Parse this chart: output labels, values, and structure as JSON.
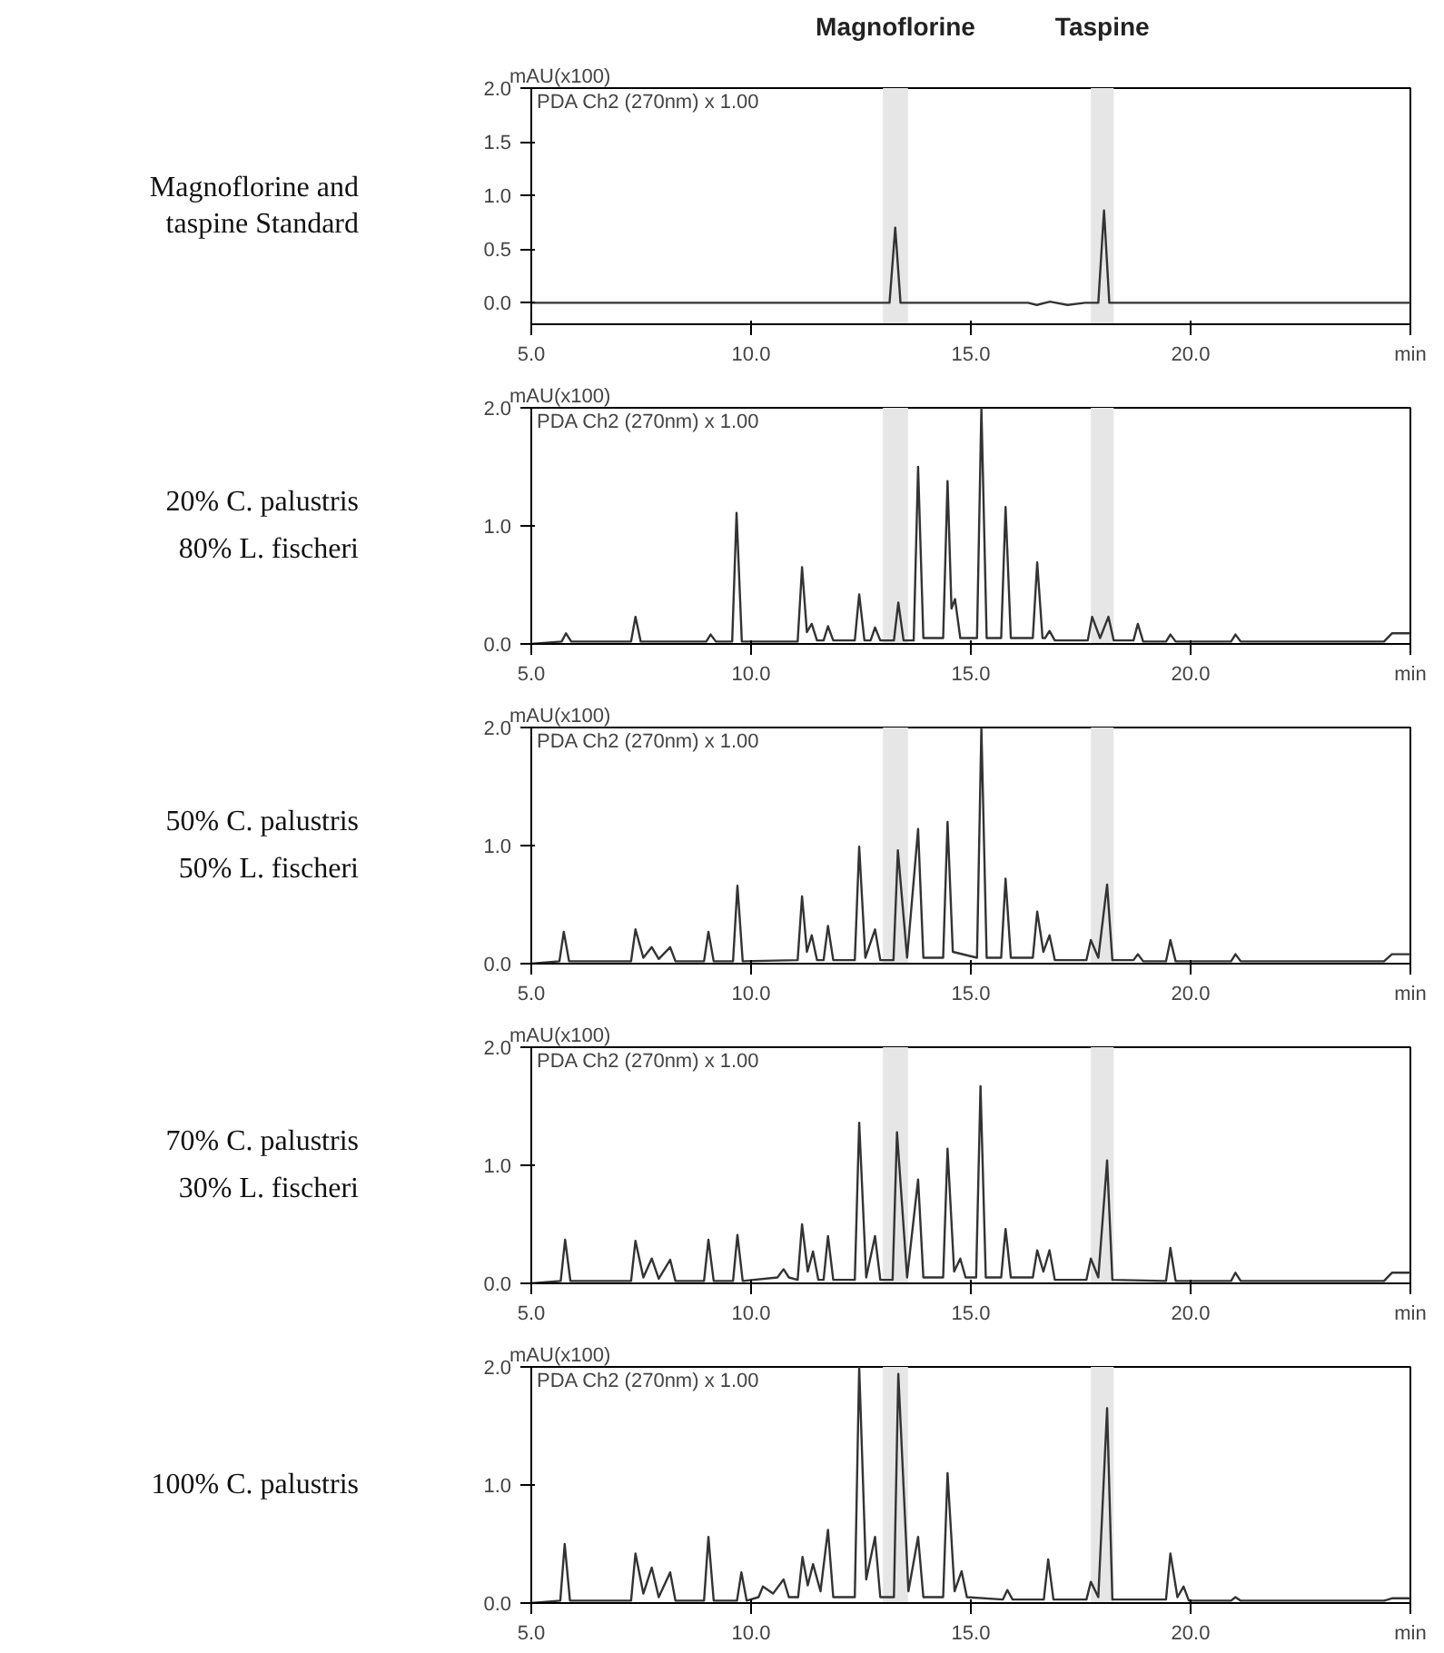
{
  "chart_data": [
    {
      "type": "line",
      "title": "Magnoflorine and taspine Standard",
      "ylabel": "mAU(x100)",
      "annotations": [
        "PDA Ch2 (270nm) x 1.00"
      ],
      "color": "#333333",
      "x": [
        5,
        13.15,
        13.28,
        13.4,
        16.3,
        16.5,
        16.8,
        17.2,
        17.6,
        17.9,
        18.03,
        18.15,
        25
      ],
      "values": [
        0,
        0,
        0.7,
        0,
        0,
        -0.02,
        0.01,
        -0.02,
        0,
        0,
        0.86,
        0,
        0
      ],
      "xlim": [
        5,
        25
      ],
      "ylim": [
        -0.2,
        2.0
      ],
      "xticks": [
        {
          "value": 5,
          "label": "5.0"
        },
        {
          "value": 10,
          "label": "10.0"
        },
        {
          "value": 15,
          "label": "15.0"
        },
        {
          "value": 20,
          "label": "20.0"
        },
        {
          "value": 25,
          "label": "min"
        }
      ],
      "yticks": [
        {
          "value": 0,
          "label": "0.0"
        },
        {
          "value": 0.5,
          "label": "0.5"
        },
        {
          "value": 1,
          "label": "1.0"
        },
        {
          "value": 1.5,
          "label": "1.5"
        },
        {
          "value": 2,
          "label": "2.0"
        }
      ],
      "bands": [
        {
          "axis": "x",
          "from": 13.0,
          "to": 13.57,
          "color": "#e6e6e6",
          "label": "Magnoflorine"
        },
        {
          "axis": "x",
          "from": 17.73,
          "to": 18.25,
          "color": "#e6e6e6",
          "label": "Taspine"
        }
      ]
    },
    {
      "type": "line",
      "title": "20% C. palustris",
      "subtitle": "80% L. fischeri",
      "ylabel": "mAU(x100)",
      "annotations": [
        "PDA Ch2 (270nm) x 1.00"
      ],
      "color": "#333333",
      "x": [
        5,
        5.69,
        5.79,
        5.91,
        7.27,
        7.37,
        7.49,
        8.98,
        9.08,
        9.2,
        9.57,
        9.67,
        9.79,
        11.06,
        11.16,
        11.27,
        11.38,
        11.5,
        11.65,
        11.75,
        11.87,
        12.36,
        12.46,
        12.58,
        12.72,
        12.82,
        12.94,
        13.25,
        13.35,
        13.47,
        13.7,
        13.8,
        13.92,
        14.37,
        14.47,
        14.56,
        14.64,
        14.76,
        15.14,
        15.24,
        15.36,
        15.69,
        15.79,
        15.91,
        16.41,
        16.51,
        16.63,
        16.69,
        16.79,
        16.91,
        17.66,
        17.76,
        17.94,
        18.13,
        18.25,
        18.7,
        18.8,
        18.92,
        19.44,
        19.54,
        19.66,
        20.92,
        21.02,
        21.14,
        24.4,
        24.58,
        25
      ],
      "values": [
        0,
        0.02,
        0.09,
        0.02,
        0.02,
        0.23,
        0.02,
        0.02,
        0.08,
        0.02,
        0.02,
        1.11,
        0.02,
        0.02,
        0.65,
        0.1,
        0.17,
        0.03,
        0.03,
        0.15,
        0.03,
        0.03,
        0.42,
        0.03,
        0.03,
        0.14,
        0.03,
        0.03,
        0.35,
        0.03,
        0.03,
        1.5,
        0.05,
        0.05,
        1.38,
        0.3,
        0.38,
        0.05,
        0.05,
        2.0,
        0.05,
        0.05,
        1.16,
        0.05,
        0.05,
        0.69,
        0.05,
        0.05,
        0.11,
        0.03,
        0.03,
        0.23,
        0.05,
        0.23,
        0.03,
        0.03,
        0.17,
        0.02,
        0.02,
        0.08,
        0.02,
        0.02,
        0.08,
        0.02,
        0.02,
        0.09,
        0.09
      ],
      "xlim": [
        5,
        25
      ],
      "ylim": [
        0,
        2.0
      ],
      "xticks": [
        {
          "value": 5,
          "label": "5.0"
        },
        {
          "value": 10,
          "label": "10.0"
        },
        {
          "value": 15,
          "label": "15.0"
        },
        {
          "value": 20,
          "label": "20.0"
        },
        {
          "value": 25,
          "label": "min"
        }
      ],
      "yticks": [
        {
          "value": 0,
          "label": "0.0"
        },
        {
          "value": 1,
          "label": "1.0"
        },
        {
          "value": 2,
          "label": "2.0"
        }
      ],
      "bands": [
        {
          "axis": "x",
          "from": 13.0,
          "to": 13.57,
          "color": "#e6e6e6"
        },
        {
          "axis": "x",
          "from": 17.73,
          "to": 18.25,
          "color": "#e6e6e6"
        }
      ]
    },
    {
      "type": "line",
      "title": "50% C. palustris",
      "subtitle": "50% L. fischeri",
      "ylabel": "mAU(x100)",
      "annotations": [
        "PDA Ch2 (270nm) x 1.00"
      ],
      "color": "#333333",
      "x": [
        5,
        5.64,
        5.74,
        5.86,
        7.27,
        7.37,
        7.55,
        7.74,
        7.9,
        8.16,
        8.28,
        8.93,
        9.03,
        9.15,
        9.59,
        9.69,
        9.81,
        11.06,
        11.16,
        11.27,
        11.38,
        11.5,
        11.65,
        11.75,
        11.87,
        12.36,
        12.46,
        12.6,
        12.82,
        12.94,
        13.24,
        13.34,
        13.55,
        13.8,
        13.92,
        14.37,
        14.47,
        14.59,
        15.14,
        15.24,
        15.36,
        15.69,
        15.79,
        15.91,
        16.41,
        16.51,
        16.65,
        16.79,
        16.91,
        17.63,
        17.73,
        17.9,
        18.1,
        18.22,
        18.7,
        18.8,
        18.92,
        19.44,
        19.54,
        19.66,
        20.92,
        21.02,
        21.14,
        24.4,
        24.58,
        25
      ],
      "values": [
        0,
        0.02,
        0.27,
        0.02,
        0.02,
        0.29,
        0.05,
        0.14,
        0.04,
        0.14,
        0.02,
        0.02,
        0.27,
        0.02,
        0.02,
        0.66,
        0.02,
        0.03,
        0.57,
        0.1,
        0.24,
        0.03,
        0.03,
        0.32,
        0.03,
        0.03,
        0.99,
        0.05,
        0.29,
        0.03,
        0.03,
        0.96,
        0.05,
        1.14,
        0.05,
        0.05,
        1.2,
        0.1,
        0.05,
        2.0,
        0.05,
        0.05,
        0.72,
        0.05,
        0.05,
        0.44,
        0.1,
        0.24,
        0.03,
        0.03,
        0.2,
        0.05,
        0.67,
        0.03,
        0.03,
        0.08,
        0.02,
        0.02,
        0.2,
        0.02,
        0.02,
        0.08,
        0.02,
        0.02,
        0.08,
        0.08
      ],
      "xlim": [
        5,
        25
      ],
      "ylim": [
        0,
        2.0
      ],
      "xticks": [
        {
          "value": 5,
          "label": "5.0"
        },
        {
          "value": 10,
          "label": "10.0"
        },
        {
          "value": 15,
          "label": "15.0"
        },
        {
          "value": 20,
          "label": "20.0"
        },
        {
          "value": 25,
          "label": "min"
        }
      ],
      "yticks": [
        {
          "value": 0,
          "label": "0.0"
        },
        {
          "value": 1,
          "label": "1.0"
        },
        {
          "value": 2,
          "label": "2.0"
        }
      ],
      "bands": [
        {
          "axis": "x",
          "from": 13.0,
          "to": 13.57,
          "color": "#e6e6e6"
        },
        {
          "axis": "x",
          "from": 17.73,
          "to": 18.25,
          "color": "#e6e6e6"
        }
      ]
    },
    {
      "type": "line",
      "title": "70% C. palustris",
      "subtitle": "30% L. fischeri",
      "ylabel": "mAU(x100)",
      "annotations": [
        "PDA Ch2 (270nm) x 1.00"
      ],
      "color": "#333333",
      "x": [
        5,
        5.67,
        5.77,
        5.89,
        7.27,
        7.37,
        7.55,
        7.74,
        7.9,
        8.16,
        8.28,
        8.93,
        9.03,
        9.15,
        9.59,
        9.69,
        9.81,
        10.6,
        10.74,
        10.86,
        11.06,
        11.16,
        11.29,
        11.41,
        11.53,
        11.65,
        11.75,
        11.87,
        12.36,
        12.46,
        12.62,
        12.82,
        12.94,
        13.22,
        13.32,
        13.55,
        13.8,
        13.92,
        14.37,
        14.47,
        14.62,
        14.76,
        14.88,
        15.12,
        15.22,
        15.34,
        15.69,
        15.79,
        15.91,
        16.41,
        16.51,
        16.65,
        16.79,
        16.91,
        17.63,
        17.73,
        17.9,
        18.1,
        18.22,
        19.44,
        19.54,
        19.66,
        20.92,
        21.02,
        21.14,
        24.4,
        24.58,
        25
      ],
      "values": [
        0,
        0.02,
        0.37,
        0.02,
        0.02,
        0.36,
        0.05,
        0.21,
        0.04,
        0.2,
        0.02,
        0.02,
        0.37,
        0.02,
        0.02,
        0.41,
        0.02,
        0.05,
        0.12,
        0.05,
        0.03,
        0.5,
        0.1,
        0.27,
        0.03,
        0.03,
        0.4,
        0.03,
        0.03,
        1.36,
        0.05,
        0.4,
        0.03,
        0.03,
        1.28,
        0.05,
        0.88,
        0.05,
        0.05,
        1.14,
        0.1,
        0.21,
        0.05,
        0.05,
        1.67,
        0.05,
        0.05,
        0.46,
        0.05,
        0.05,
        0.28,
        0.1,
        0.28,
        0.03,
        0.03,
        0.21,
        0.05,
        1.04,
        0.03,
        0.02,
        0.3,
        0.02,
        0.02,
        0.09,
        0.02,
        0.02,
        0.09,
        0.09
      ],
      "xlim": [
        5,
        25
      ],
      "ylim": [
        0,
        2.0
      ],
      "xticks": [
        {
          "value": 5,
          "label": "5.0"
        },
        {
          "value": 10,
          "label": "10.0"
        },
        {
          "value": 15,
          "label": "15.0"
        },
        {
          "value": 20,
          "label": "20.0"
        },
        {
          "value": 25,
          "label": "min"
        }
      ],
      "yticks": [
        {
          "value": 0,
          "label": "0.0"
        },
        {
          "value": 1,
          "label": "1.0"
        },
        {
          "value": 2,
          "label": "2.0"
        }
      ],
      "bands": [
        {
          "axis": "x",
          "from": 13.0,
          "to": 13.57,
          "color": "#e6e6e6"
        },
        {
          "axis": "x",
          "from": 17.73,
          "to": 18.25,
          "color": "#e6e6e6"
        }
      ]
    },
    {
      "type": "line",
      "title": "100% C. palustris",
      "ylabel": "mAU(x100)",
      "annotations": [
        "PDA Ch2 (270nm) x 1.00"
      ],
      "color": "#333333",
      "x": [
        5,
        5.66,
        5.76,
        5.88,
        7.27,
        7.37,
        7.55,
        7.74,
        7.9,
        8.16,
        8.28,
        8.93,
        9.03,
        9.15,
        9.68,
        9.78,
        9.9,
        10.17,
        10.27,
        10.5,
        10.74,
        10.86,
        11.07,
        11.17,
        11.29,
        11.41,
        11.58,
        11.75,
        11.87,
        12.36,
        12.46,
        12.62,
        12.82,
        12.94,
        13.25,
        13.35,
        13.58,
        13.8,
        13.92,
        14.37,
        14.47,
        14.63,
        14.79,
        14.91,
        15.73,
        15.83,
        15.95,
        16.66,
        16.76,
        16.88,
        17.63,
        17.73,
        17.9,
        18.1,
        18.22,
        19.44,
        19.54,
        19.7,
        19.84,
        19.96,
        20.92,
        21.02,
        21.14,
        24.4,
        24.58,
        25
      ],
      "values": [
        0,
        0.02,
        0.5,
        0.02,
        0.02,
        0.42,
        0.08,
        0.3,
        0.05,
        0.26,
        0.02,
        0.02,
        0.56,
        0.02,
        0.02,
        0.26,
        0.02,
        0.05,
        0.14,
        0.08,
        0.2,
        0.05,
        0.05,
        0.39,
        0.15,
        0.33,
        0.1,
        0.62,
        0.05,
        0.05,
        2.0,
        0.2,
        0.56,
        0.05,
        0.05,
        1.94,
        0.1,
        0.56,
        0.05,
        0.05,
        1.1,
        0.1,
        0.27,
        0.05,
        0.03,
        0.11,
        0.03,
        0.03,
        0.37,
        0.03,
        0.03,
        0.18,
        0.05,
        1.65,
        0.03,
        0.03,
        0.42,
        0.05,
        0.14,
        0.02,
        0.02,
        0.05,
        0.02,
        0.02,
        0.04,
        0.04
      ],
      "xlim": [
        5,
        25
      ],
      "ylim": [
        0,
        2.0
      ],
      "xticks": [
        {
          "value": 5,
          "label": "5.0"
        },
        {
          "value": 10,
          "label": "10.0"
        },
        {
          "value": 15,
          "label": "15.0"
        },
        {
          "value": 20,
          "label": "20.0"
        },
        {
          "value": 25,
          "label": "min"
        }
      ],
      "yticks": [
        {
          "value": 0,
          "label": "0.0"
        },
        {
          "value": 1,
          "label": "1.0"
        },
        {
          "value": 2,
          "label": "2.0"
        }
      ],
      "bands": [
        {
          "axis": "x",
          "from": 13.0,
          "to": 13.57,
          "color": "#e6e6e6"
        },
        {
          "axis": "x",
          "from": 17.73,
          "to": 18.25,
          "color": "#e6e6e6"
        }
      ]
    }
  ]
}
